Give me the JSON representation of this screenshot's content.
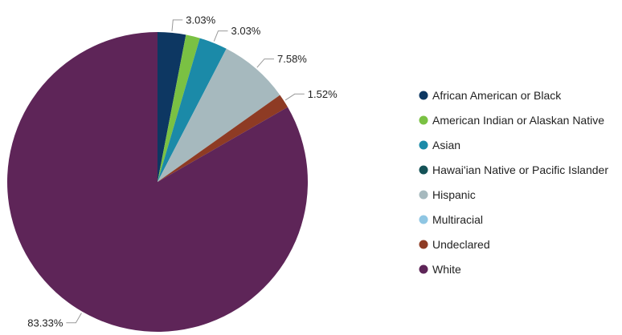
{
  "chart_data": {
    "type": "pie",
    "title": "",
    "legend_position": "right",
    "slices": [
      {
        "label": "African American or Black",
        "value": 3.03,
        "display": "3.03%",
        "color": "#0d3762"
      },
      {
        "label": "American Indian or Alaskan Native",
        "value": 1.52,
        "display": "",
        "color": "#7ac143"
      },
      {
        "label": "Asian",
        "value": 3.03,
        "display": "3.03%",
        "color": "#1b8aa8"
      },
      {
        "label": "Hawai'ian Native or Pacific Islander",
        "value": 0,
        "display": "",
        "color": "#145257"
      },
      {
        "label": "Hispanic",
        "value": 7.58,
        "display": "7.58%",
        "color": "#a6b9be"
      },
      {
        "label": "Multiracial",
        "value": 0,
        "display": "",
        "color": "#8fc6e3"
      },
      {
        "label": "Undeclared",
        "value": 1.52,
        "display": "1.52%",
        "color": "#8e3b24"
      },
      {
        "label": "White",
        "value": 83.33,
        "display": "83.33%",
        "color": "#5e2558"
      }
    ]
  }
}
